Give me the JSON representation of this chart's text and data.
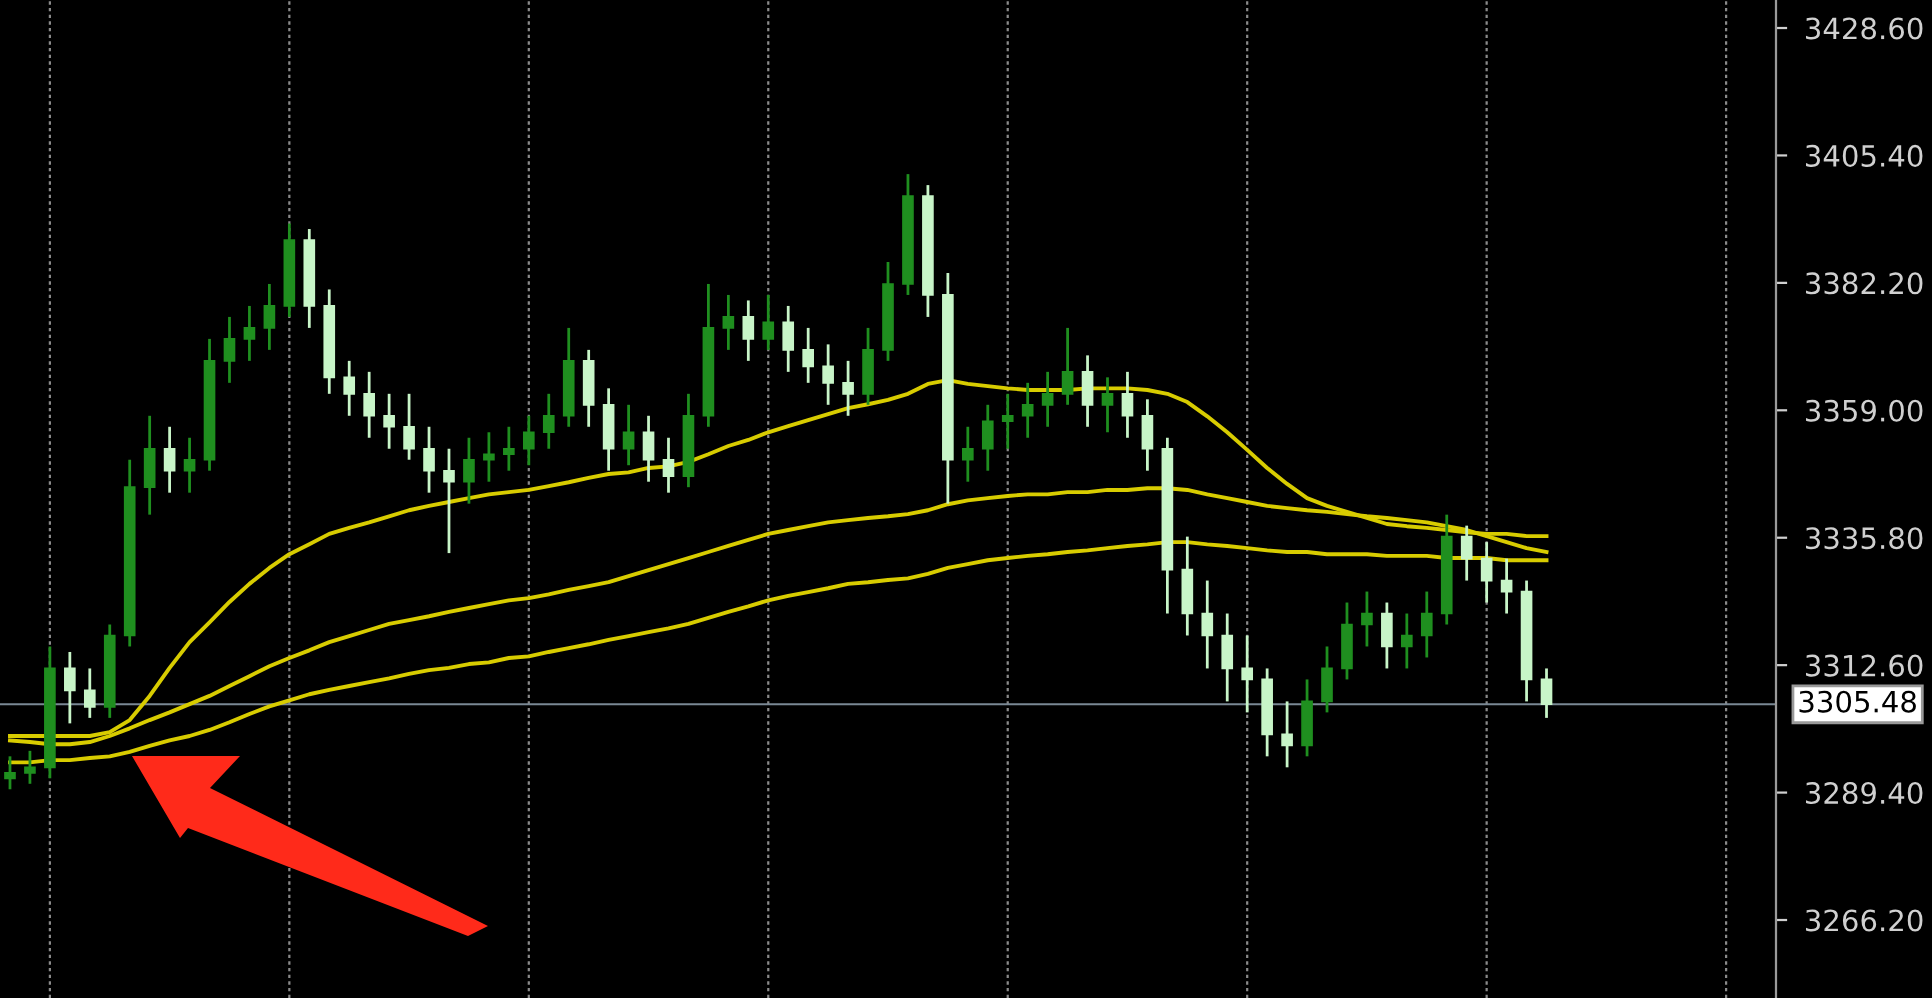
{
  "chart_data": {
    "type": "candlestick",
    "categories": [
      null,
      null,
      null,
      null,
      null,
      null,
      null,
      null,
      null,
      null,
      null,
      null,
      null,
      null,
      null,
      null,
      null,
      null,
      null,
      null,
      null,
      null,
      null,
      null,
      null,
      null,
      null,
      null,
      null,
      null,
      null,
      null,
      null,
      null,
      null,
      null,
      null,
      null,
      null,
      null,
      null,
      null,
      null,
      null,
      null,
      null,
      null,
      null,
      null,
      null,
      null,
      null,
      null,
      null,
      null,
      null,
      null,
      null,
      null,
      null,
      null,
      null,
      null,
      null,
      null,
      null,
      null,
      null,
      null,
      null,
      null,
      null,
      null,
      null,
      null,
      null,
      null,
      null,
      null,
      null,
      null,
      null,
      null,
      null,
      null,
      null,
      null,
      null,
      null
    ],
    "ohlc": [
      [
        3292,
        3296,
        3290,
        3293
      ],
      [
        3293,
        3297,
        3291,
        3294
      ],
      [
        3294,
        3316,
        3292,
        3312
      ],
      [
        3312,
        3315,
        3302,
        3308
      ],
      [
        3308,
        3312,
        3303,
        3305
      ],
      [
        3305,
        3320,
        3303,
        3318
      ],
      [
        3318,
        3350,
        3316,
        3345
      ],
      [
        3345,
        3358,
        3340,
        3352
      ],
      [
        3352,
        3356,
        3344,
        3348
      ],
      [
        3348,
        3354,
        3344,
        3350
      ],
      [
        3350,
        3372,
        3348,
        3368
      ],
      [
        3368,
        3376,
        3364,
        3372
      ],
      [
        3372,
        3378,
        3368,
        3374
      ],
      [
        3374,
        3382,
        3370,
        3378
      ],
      [
        3378,
        3393,
        3376,
        3390
      ],
      [
        3390,
        3392,
        3374,
        3378
      ],
      [
        3378,
        3381,
        3362,
        3365
      ],
      [
        3365,
        3368,
        3358,
        3362
      ],
      [
        3362,
        3366,
        3354,
        3358
      ],
      [
        3358,
        3362,
        3352,
        3356
      ],
      [
        3356,
        3362,
        3350,
        3352
      ],
      [
        3352,
        3356,
        3344,
        3348
      ],
      [
        3348,
        3352,
        3333,
        3346
      ],
      [
        3346,
        3354,
        3342,
        3350
      ],
      [
        3350,
        3355,
        3346,
        3351
      ],
      [
        3351,
        3356,
        3348,
        3352
      ],
      [
        3352,
        3358,
        3349,
        3355
      ],
      [
        3355,
        3362,
        3352,
        3358
      ],
      [
        3358,
        3374,
        3356,
        3368
      ],
      [
        3368,
        3370,
        3356,
        3360
      ],
      [
        3360,
        3363,
        3348,
        3352
      ],
      [
        3352,
        3360,
        3349,
        3355
      ],
      [
        3355,
        3358,
        3346,
        3350
      ],
      [
        3350,
        3354,
        3344,
        3347
      ],
      [
        3347,
        3362,
        3345,
        3358
      ],
      [
        3358,
        3382,
        3356,
        3374
      ],
      [
        3374,
        3380,
        3370,
        3376
      ],
      [
        3376,
        3379,
        3368,
        3372
      ],
      [
        3372,
        3380,
        3370,
        3375
      ],
      [
        3375,
        3378,
        3366,
        3370
      ],
      [
        3370,
        3374,
        3364,
        3367
      ],
      [
        3367,
        3371,
        3360,
        3364
      ],
      [
        3364,
        3368,
        3358,
        3362
      ],
      [
        3362,
        3374,
        3360,
        3370
      ],
      [
        3370,
        3386,
        3368,
        3382
      ],
      [
        3382,
        3402,
        3380,
        3398
      ],
      [
        3398,
        3400,
        3376,
        3380
      ],
      [
        3380,
        3384,
        3342,
        3350
      ],
      [
        3350,
        3356,
        3346,
        3352
      ],
      [
        3352,
        3360,
        3348,
        3357
      ],
      [
        3357,
        3362,
        3352,
        3358
      ],
      [
        3358,
        3364,
        3354,
        3360
      ],
      [
        3360,
        3366,
        3356,
        3362
      ],
      [
        3362,
        3374,
        3360,
        3366
      ],
      [
        3366,
        3369,
        3356,
        3360
      ],
      [
        3360,
        3365,
        3355,
        3362
      ],
      [
        3362,
        3366,
        3354,
        3358
      ],
      [
        3358,
        3361,
        3348,
        3352
      ],
      [
        3352,
        3354,
        3322,
        3330
      ],
      [
        3330,
        3336,
        3318,
        3322
      ],
      [
        3322,
        3328,
        3312,
        3318
      ],
      [
        3318,
        3322,
        3306,
        3312
      ],
      [
        3312,
        3318,
        3304,
        3310
      ],
      [
        3310,
        3312,
        3296,
        3300
      ],
      [
        3300,
        3306,
        3294,
        3298
      ],
      [
        3298,
        3310,
        3296,
        3306
      ],
      [
        3306,
        3316,
        3304,
        3312
      ],
      [
        3312,
        3324,
        3310,
        3320
      ],
      [
        3320,
        3326,
        3316,
        3322
      ],
      [
        3322,
        3324,
        3312,
        3316
      ],
      [
        3316,
        3322,
        3312,
        3318
      ],
      [
        3318,
        3326,
        3314,
        3322
      ],
      [
        3322,
        3340,
        3320,
        3336
      ],
      [
        3336,
        3338,
        3328,
        3332
      ],
      [
        3332,
        3335,
        3324,
        3328
      ],
      [
        3328,
        3332,
        3322,
        3326
      ],
      [
        3326,
        3328,
        3306,
        3310
      ],
      [
        3310,
        3312,
        3303,
        3305.48
      ],
      null,
      null,
      null,
      null,
      null,
      null,
      null,
      null,
      null,
      null,
      null
    ],
    "colors": [
      "#1f8f1f",
      "#1f8f1f",
      "#1f8f1f",
      "#c8f5c8",
      "#c8f5c8",
      "#1f8f1f",
      "#1f8f1f",
      "#1f8f1f",
      "#c8f5c8",
      "#1f8f1f",
      "#1f8f1f",
      "#1f8f1f",
      "#1f8f1f",
      "#1f8f1f",
      "#1f8f1f",
      "#c8f5c8",
      "#c8f5c8",
      "#c8f5c8",
      "#c8f5c8",
      "#c8f5c8",
      "#c8f5c8",
      "#c8f5c8",
      "#c8f5c8",
      "#1f8f1f",
      "#1f8f1f",
      "#1f8f1f",
      "#1f8f1f",
      "#1f8f1f",
      "#1f8f1f",
      "#c8f5c8",
      "#c8f5c8",
      "#1f8f1f",
      "#c8f5c8",
      "#c8f5c8",
      "#1f8f1f",
      "#1f8f1f",
      "#1f8f1f",
      "#c8f5c8",
      "#1f8f1f",
      "#c8f5c8",
      "#c8f5c8",
      "#c8f5c8",
      "#c8f5c8",
      "#1f8f1f",
      "#1f8f1f",
      "#1f8f1f",
      "#c8f5c8",
      "#c8f5c8",
      "#1f8f1f",
      "#1f8f1f",
      "#1f8f1f",
      "#1f8f1f",
      "#1f8f1f",
      "#1f8f1f",
      "#c8f5c8",
      "#1f8f1f",
      "#c8f5c8",
      "#c8f5c8",
      "#c8f5c8",
      "#c8f5c8",
      "#c8f5c8",
      "#c8f5c8",
      "#c8f5c8",
      "#c8f5c8",
      "#c8f5c8",
      "#1f8f1f",
      "#1f8f1f",
      "#1f8f1f",
      "#1f8f1f",
      "#c8f5c8",
      "#1f8f1f",
      "#1f8f1f",
      "#1f8f1f",
      "#c8f5c8",
      "#c8f5c8",
      "#c8f5c8",
      "#c8f5c8",
      "#c8f5c8",
      null,
      null,
      null,
      null,
      null,
      null,
      null,
      null,
      null,
      null,
      null
    ],
    "series": [
      {
        "type": "line",
        "color": "#d8cc00",
        "values": [
          3299.7,
          3299.7,
          3299.7,
          3299.7,
          3299.7,
          3300.4,
          3302.6,
          3307.0,
          3312.1,
          3316.8,
          3320.4,
          3324.1,
          3327.4,
          3330.3,
          3332.8,
          3334.6,
          3336.5,
          3337.6,
          3338.6,
          3339.7,
          3340.8,
          3341.6,
          3342.3,
          3343.0,
          3343.7,
          3344.1,
          3344.5,
          3345.2,
          3345.9,
          3346.7,
          3347.4,
          3347.7,
          3348.5,
          3348.8,
          3349.6,
          3351.0,
          3352.5,
          3353.6,
          3355.0,
          3356.1,
          3357.2,
          3358.3,
          3359.4,
          3360.1,
          3360.9,
          3362.0,
          3363.8,
          3364.5,
          3363.8,
          3363.4,
          3363.0,
          3362.7,
          3362.7,
          3362.7,
          3363.0,
          3363.0,
          3363.0,
          3362.7,
          3362.0,
          3360.5,
          3357.9,
          3355.0,
          3351.8,
          3348.5,
          3345.6,
          3343.0,
          3341.6,
          3340.5,
          3339.4,
          3338.3,
          3337.9,
          3337.6,
          3337.2,
          3336.8,
          3336.5,
          3336.5,
          3336.1,
          3336.1,
          null,
          null,
          null,
          null,
          null,
          null,
          null,
          null,
          null,
          null,
          null
        ]
      },
      {
        "type": "line",
        "color": "#d8cc00",
        "values": [
          3298.9,
          3298.6,
          3298.2,
          3298.2,
          3298.6,
          3299.7,
          3301.1,
          3302.6,
          3304.0,
          3305.5,
          3307.0,
          3308.8,
          3310.6,
          3312.4,
          3313.9,
          3315.3,
          3316.8,
          3317.9,
          3319.0,
          3320.1,
          3320.8,
          3321.5,
          3322.3,
          3323.0,
          3323.7,
          3324.4,
          3324.8,
          3325.5,
          3326.3,
          3327.0,
          3327.7,
          3328.8,
          3329.9,
          3331.0,
          3332.1,
          3333.2,
          3334.3,
          3335.4,
          3336.5,
          3337.2,
          3337.9,
          3338.6,
          3339.0,
          3339.4,
          3339.7,
          3340.1,
          3340.8,
          3341.9,
          3342.6,
          3343.0,
          3343.4,
          3343.7,
          3343.7,
          3344.1,
          3344.1,
          3344.5,
          3344.5,
          3344.8,
          3344.8,
          3344.5,
          3343.7,
          3343.0,
          3342.3,
          3341.6,
          3341.2,
          3340.8,
          3340.5,
          3340.1,
          3339.7,
          3339.4,
          3339.0,
          3338.6,
          3337.9,
          3337.2,
          3336.1,
          3335.0,
          3333.9,
          3333.2,
          null,
          null,
          null,
          null,
          null,
          null,
          null,
          null,
          null,
          null,
          null
        ]
      },
      {
        "type": "line",
        "color": "#d8cc00",
        "values": [
          3294.9,
          3294.9,
          3295.3,
          3295.3,
          3295.7,
          3296.0,
          3296.8,
          3297.9,
          3298.9,
          3299.7,
          3300.8,
          3302.2,
          3303.7,
          3305.1,
          3306.2,
          3307.3,
          3308.1,
          3308.8,
          3309.5,
          3310.2,
          3311.0,
          3311.7,
          3312.1,
          3312.8,
          3313.1,
          3313.9,
          3314.2,
          3315.0,
          3315.7,
          3316.4,
          3317.2,
          3317.9,
          3318.6,
          3319.3,
          3320.1,
          3321.2,
          3322.3,
          3323.3,
          3324.4,
          3325.2,
          3325.9,
          3326.6,
          3327.4,
          3327.7,
          3328.1,
          3328.4,
          3329.2,
          3330.3,
          3331.0,
          3331.7,
          3332.1,
          3332.5,
          3332.8,
          3333.2,
          3333.5,
          3333.9,
          3334.3,
          3334.6,
          3335.0,
          3335.0,
          3334.6,
          3334.3,
          3333.9,
          3333.5,
          3333.2,
          3333.2,
          3332.8,
          3332.8,
          3332.8,
          3332.5,
          3332.5,
          3332.5,
          3332.1,
          3332.1,
          3332.1,
          3331.7,
          3331.7,
          3331.7,
          null,
          null,
          null,
          null,
          null,
          null,
          null,
          null,
          null,
          null,
          null
        ]
      }
    ],
    "ylim": [
      3252.0,
      3433.7
    ],
    "yticks": [
      {
        "value": 3428.6,
        "label": "3428.60"
      },
      {
        "value": 3405.4,
        "label": "3405.40"
      },
      {
        "value": 3382.2,
        "label": "3382.20"
      },
      {
        "value": 3359.0,
        "label": "3359.00"
      },
      {
        "value": 3335.8,
        "label": "3335.80"
      },
      {
        "value": 3312.6,
        "label": "3312.60"
      },
      {
        "value": 3289.4,
        "label": "3289.40"
      },
      {
        "value": 3266.2,
        "label": "3266.20"
      }
    ],
    "ref_lines": [
      {
        "axis": "y",
        "value": 3305.48,
        "label": "3305.48",
        "color": "#7a8894"
      }
    ],
    "grid": "x",
    "tick_labels": "y"
  }
}
